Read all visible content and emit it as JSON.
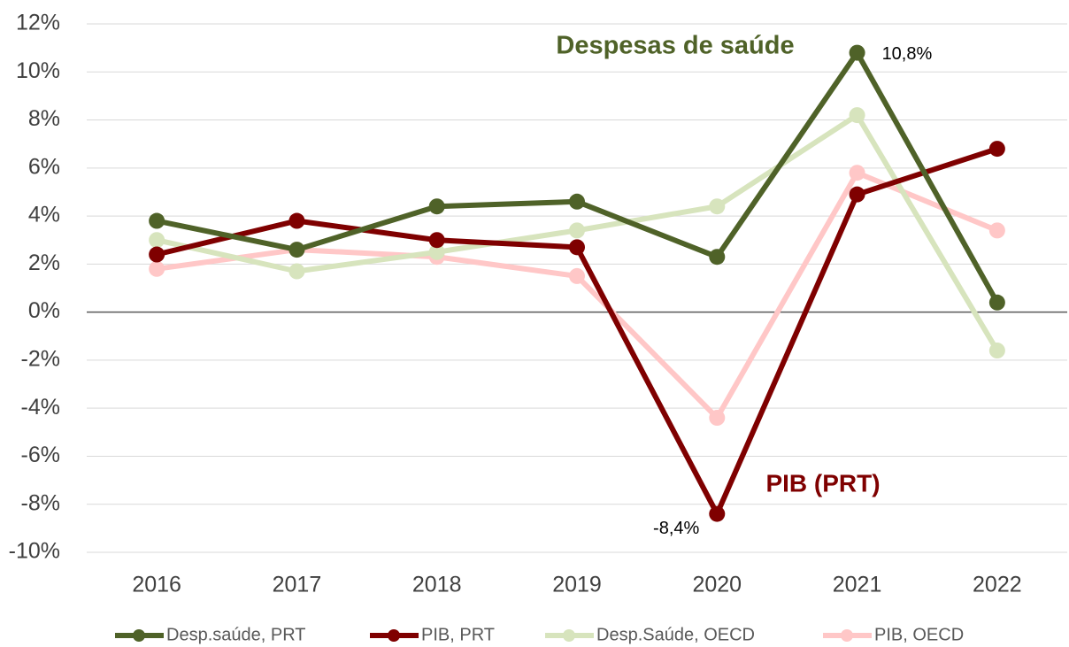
{
  "chart_data": {
    "type": "line",
    "categories": [
      "2016",
      "2017",
      "2018",
      "2019",
      "2020",
      "2021",
      "2022"
    ],
    "series": [
      {
        "name": "Desp.saúde, PRT",
        "color": "#4f6228",
        "values": [
          3.8,
          2.6,
          4.4,
          4.6,
          2.3,
          10.8,
          0.4
        ],
        "value_labels": [
          null,
          null,
          null,
          null,
          null,
          "10,8%",
          null
        ]
      },
      {
        "name": "PIB, PRT",
        "color": "#7f0000",
        "values": [
          2.4,
          3.8,
          3.0,
          2.7,
          -8.4,
          4.9,
          6.8
        ],
        "value_labels": [
          null,
          null,
          null,
          null,
          "-8,4%",
          null,
          null
        ]
      },
      {
        "name": "Desp.Saúde, OECD",
        "color": "#d7e4bd",
        "values": [
          3.0,
          1.7,
          2.5,
          3.4,
          4.4,
          8.2,
          -1.6
        ]
      },
      {
        "name": "PIB, OECD",
        "color": "#ffc7c7",
        "values": [
          1.8,
          2.6,
          2.3,
          1.5,
          -4.4,
          5.8,
          3.4
        ]
      }
    ],
    "annotations": [
      "Despesas de saúde",
      "PIB (PRT)"
    ],
    "ylim": [
      -10,
      12
    ],
    "yticks": [
      {
        "value": -10,
        "label": "-10%"
      },
      {
        "value": -8,
        "label": "-8%"
      },
      {
        "value": -6,
        "label": "-6%"
      },
      {
        "value": -4,
        "label": "-4%"
      },
      {
        "value": -2,
        "label": "-2%"
      },
      {
        "value": 0,
        "label": "0%"
      },
      {
        "value": 2,
        "label": "2%"
      },
      {
        "value": 4,
        "label": "4%"
      },
      {
        "value": 6,
        "label": "6%"
      },
      {
        "value": 8,
        "label": "8%"
      },
      {
        "value": 10,
        "label": "10%"
      },
      {
        "value": 12,
        "label": "12%"
      }
    ],
    "grid": true,
    "legend": "bottom"
  }
}
